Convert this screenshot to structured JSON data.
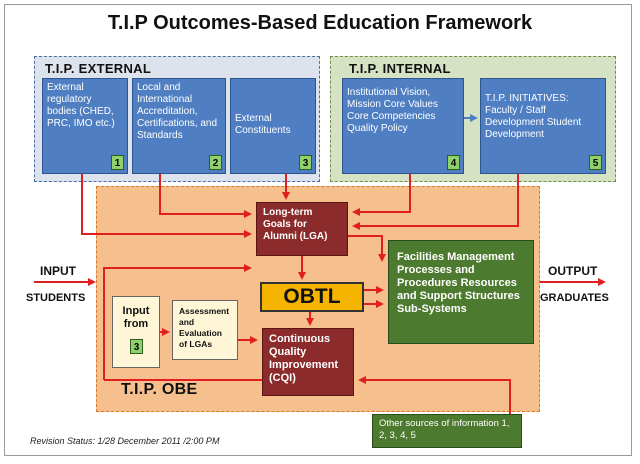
{
  "title": "T.I.P Outcomes-Based Education Framework",
  "external": {
    "label": "T.I.P. EXTERNAL",
    "boxes": [
      {
        "text": "External regulatory bodies (CHED, PRC, IMO etc.)",
        "num": "1"
      },
      {
        "text": "Local and International Accreditation, Certifications, and Standards",
        "num": "2"
      },
      {
        "text": "External Constituents",
        "num": "3"
      }
    ]
  },
  "internal": {
    "label": "T.I.P. INTERNAL",
    "boxes": [
      {
        "text": "Institutional Vision, Mission Core Values Core Competencies Quality Policy",
        "num": "4"
      },
      {
        "text": "T.I.P. INITIATIVES: Faculty / Staff Development Student Development",
        "num": "5"
      }
    ]
  },
  "obe": {
    "label": "T.I.P. OBE",
    "lga": "Long-term Goals for Alumni (LGA)",
    "obtl": "OBTL",
    "cqi": "Continuous Quality Improvement (CQI)",
    "input_from": "Input from",
    "input_from_num": "3",
    "assessment": "Assessment and Evaluation of LGAs",
    "support": "Facilities Management Processes and Procedures Resources and Support Structures Sub-Systems"
  },
  "input_label": "INPUT",
  "students_label": "STUDENTS",
  "output_label": "OUTPUT",
  "graduates_label": "GRADUATES",
  "other_sources": "Other sources of information 1, 2, 3, 4, 5",
  "revision_status": "Revision Status: 1/28 December 2011 /2:00 PM"
}
